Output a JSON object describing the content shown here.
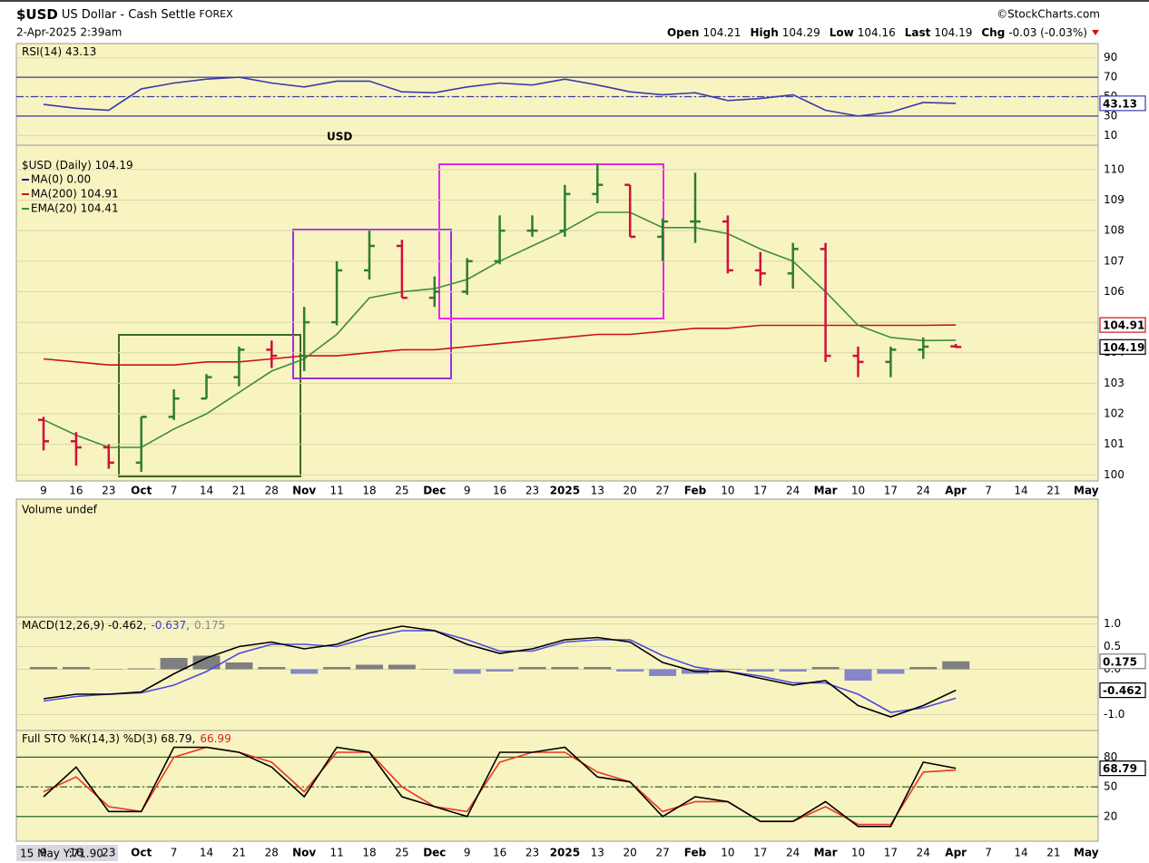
{
  "header": {
    "symbol": "$USD",
    "name": "US Dollar - Cash Settle",
    "exchange": "FOREX",
    "source": "©StockCharts.com",
    "date": "2-Apr-2025 2:39am",
    "quote": [
      {
        "label": "Open",
        "value": "104.21"
      },
      {
        "label": "High",
        "value": "104.29"
      },
      {
        "label": "Low",
        "value": "104.16"
      },
      {
        "label": "Last",
        "value": "104.19"
      },
      {
        "label": "Chg",
        "value": "-0.03 (-0.03%)"
      }
    ]
  },
  "volume_panel": {
    "title": "Volume undef"
  },
  "cursor_readout": "15 May Y:71.90",
  "chart_data": [
    {
      "type": "line",
      "title": [
        "RSI(14) 43.13"
      ],
      "title_colors": [
        "#000000"
      ],
      "ylim": [
        0,
        100
      ],
      "yticks": [
        90,
        70,
        50,
        30,
        10
      ],
      "reference_lines": [
        70,
        50,
        30
      ],
      "reference_color": "#3a3aa0",
      "series": [
        {
          "color": "#3a3aa8",
          "tag": "43.13",
          "values": [
            42,
            38,
            36,
            58,
            64,
            68,
            70,
            64,
            60,
            66,
            66,
            55,
            54,
            60,
            64,
            62,
            68,
            62,
            55,
            52,
            54,
            46,
            48,
            52,
            36,
            30,
            34,
            44,
            43.13,
            null,
            null,
            null,
            null
          ]
        }
      ]
    },
    {
      "type": "ohlc",
      "title": [
        "$USD (Daily) 104.19"
      ],
      "title_colors": [
        "#000000"
      ],
      "annotation": "USD",
      "annotation_color": "#2e7d1f",
      "categories": [
        "9",
        "16",
        "23",
        "Oct",
        "7",
        "14",
        "21",
        "28",
        "Nov",
        "11",
        "18",
        "25",
        "Dec",
        "9",
        "16",
        "23",
        "2025",
        "13",
        "20",
        "27",
        "Feb",
        "10",
        "17",
        "24",
        "Mar",
        "10",
        "17",
        "24",
        "Apr",
        "7",
        "14",
        "21",
        "May"
      ],
      "ylim": [
        99.8,
        110.8
      ],
      "yticks": [
        100,
        101,
        102,
        103,
        104,
        105,
        106,
        107,
        108,
        109,
        110
      ],
      "up_color": "#2f7d2f",
      "down_color": "#d0103a",
      "last_tag": "104.19",
      "open": [
        101.8,
        101.1,
        100.9,
        100.4,
        101.9,
        102.5,
        103.2,
        104.1,
        103.9,
        105.0,
        106.7,
        107.5,
        105.8,
        106.0,
        107.0,
        108.0,
        108.0,
        109.2,
        109.5,
        107.8,
        108.3,
        108.3,
        106.7,
        106.6,
        107.4,
        103.9,
        103.7,
        104.1,
        104.21,
        null,
        null,
        null,
        null
      ],
      "high": [
        101.9,
        101.4,
        101.0,
        101.9,
        102.8,
        103.3,
        104.2,
        104.4,
        105.5,
        107.0,
        108.0,
        107.7,
        106.5,
        107.1,
        108.5,
        108.5,
        109.5,
        110.2,
        109.5,
        108.4,
        109.9,
        108.5,
        107.3,
        107.6,
        107.6,
        104.2,
        104.2,
        104.5,
        104.29,
        null,
        null,
        null,
        null
      ],
      "low": [
        100.8,
        100.3,
        100.2,
        100.1,
        101.8,
        102.5,
        102.9,
        103.5,
        103.4,
        104.9,
        106.4,
        105.8,
        105.5,
        105.9,
        106.9,
        107.8,
        107.8,
        108.9,
        107.8,
        107.0,
        107.6,
        106.6,
        106.2,
        106.1,
        103.7,
        103.2,
        103.2,
        103.8,
        104.16,
        null,
        null,
        null,
        null
      ],
      "close": [
        101.1,
        100.9,
        100.4,
        101.9,
        102.5,
        103.2,
        104.1,
        103.9,
        105.0,
        106.7,
        107.5,
        105.8,
        106.0,
        107.0,
        108.0,
        108.0,
        109.2,
        109.5,
        107.8,
        108.3,
        108.3,
        106.7,
        106.6,
        107.4,
        103.9,
        103.7,
        104.1,
        104.2,
        104.19,
        null,
        null,
        null,
        null
      ],
      "series": [
        {
          "name": "MA(0) 0.00",
          "color": "#1a1aa0"
        },
        {
          "name": "MA(200) 104.91",
          "color": "#cc1111",
          "tag": "104.91",
          "values": [
            103.8,
            103.7,
            103.6,
            103.6,
            103.6,
            103.7,
            103.7,
            103.8,
            103.9,
            103.9,
            104.0,
            104.1,
            104.1,
            104.2,
            104.3,
            104.4,
            104.5,
            104.6,
            104.6,
            104.7,
            104.8,
            104.8,
            104.9,
            104.9,
            104.9,
            104.9,
            104.9,
            104.9,
            104.91,
            null,
            null,
            null,
            null
          ]
        },
        {
          "name": "EMA(20) 104.41",
          "color": "#3c8c3c",
          "values": [
            101.8,
            101.3,
            100.9,
            100.9,
            101.5,
            102.0,
            102.7,
            103.4,
            103.8,
            104.6,
            105.8,
            106.0,
            106.1,
            106.4,
            107.0,
            107.5,
            108.0,
            108.6,
            108.6,
            108.1,
            108.1,
            107.9,
            107.4,
            107.0,
            106.0,
            104.9,
            104.5,
            104.4,
            104.41,
            null,
            null,
            null,
            null
          ]
        }
      ]
    },
    {
      "type": "macd",
      "title": [
        "MACD(12,26,9) -0.462,",
        "-0.637,",
        "0.175"
      ],
      "title_colors": [
        "#000000",
        "#3a3ad0",
        "#888888"
      ],
      "ylim": [
        -1.35,
        1.15
      ],
      "yticks": [
        {
          "value": 1,
          "label": "1.0"
        },
        0.5,
        {
          "value": 0,
          "label": "0.0"
        },
        {
          "value": -1,
          "label": "-1.0"
        }
      ],
      "series": [
        {
          "style": "histogram",
          "color": "#7f7f7f",
          "negative_color": "#8585c8",
          "tag": "0.175",
          "values": [
            0.05,
            0.05,
            0,
            0.02,
            0.25,
            0.3,
            0.15,
            0.05,
            -0.1,
            0.05,
            0.1,
            0.1,
            0,
            -0.1,
            -0.05,
            0.05,
            0.05,
            0.05,
            -0.05,
            -0.15,
            -0.1,
            0,
            -0.05,
            -0.05,
            0.05,
            -0.25,
            -0.1,
            0.05,
            0.175,
            null,
            null,
            null,
            null
          ]
        },
        {
          "style": "line",
          "color": "#4a4ae0",
          "values": [
            -0.7,
            -0.6,
            -0.55,
            -0.52,
            -0.35,
            -0.05,
            0.35,
            0.55,
            0.55,
            0.5,
            0.7,
            0.85,
            0.85,
            0.65,
            0.4,
            0.4,
            0.6,
            0.65,
            0.65,
            0.3,
            0.05,
            -0.05,
            -0.15,
            -0.3,
            -0.3,
            -0.55,
            -0.95,
            -0.85,
            -0.637,
            null,
            null,
            null,
            null
          ]
        },
        {
          "style": "line",
          "color": "#000000",
          "tag": "-0.462",
          "values": [
            -0.65,
            -0.55,
            -0.55,
            -0.5,
            -0.1,
            0.25,
            0.5,
            0.6,
            0.45,
            0.55,
            0.8,
            0.95,
            0.85,
            0.55,
            0.35,
            0.45,
            0.65,
            0.7,
            0.6,
            0.15,
            -0.05,
            -0.05,
            -0.2,
            -0.35,
            -0.25,
            -0.8,
            -1.05,
            -0.8,
            -0.462,
            null,
            null,
            null,
            null
          ]
        }
      ]
    },
    {
      "type": "line",
      "title": [
        "Full STO %K(14,3) %D(3) 68.79,",
        "66.99"
      ],
      "title_colors": [
        "#000000",
        "#dd2222"
      ],
      "ylim": [
        -5,
        107
      ],
      "yticks": [
        80,
        50,
        20
      ],
      "reference_lines": [
        80,
        50,
        20
      ],
      "reference_color": "#2a6a2a",
      "series": [
        {
          "color": "#ee3322",
          "values": [
            45,
            60,
            30,
            25,
            80,
            90,
            85,
            75,
            45,
            85,
            85,
            50,
            30,
            25,
            75,
            85,
            85,
            65,
            55,
            25,
            35,
            35,
            15,
            15,
            30,
            12,
            12,
            65,
            66.99,
            null,
            null,
            null,
            null
          ]
        },
        {
          "color": "#000000",
          "tag": "68.79",
          "values": [
            40,
            70,
            25,
            25,
            90,
            90,
            85,
            70,
            40,
            90,
            85,
            40,
            30,
            20,
            85,
            85,
            90,
            60,
            55,
            20,
            40,
            35,
            15,
            15,
            35,
            10,
            10,
            75,
            68.79,
            null,
            null,
            null,
            null
          ]
        }
      ]
    }
  ]
}
